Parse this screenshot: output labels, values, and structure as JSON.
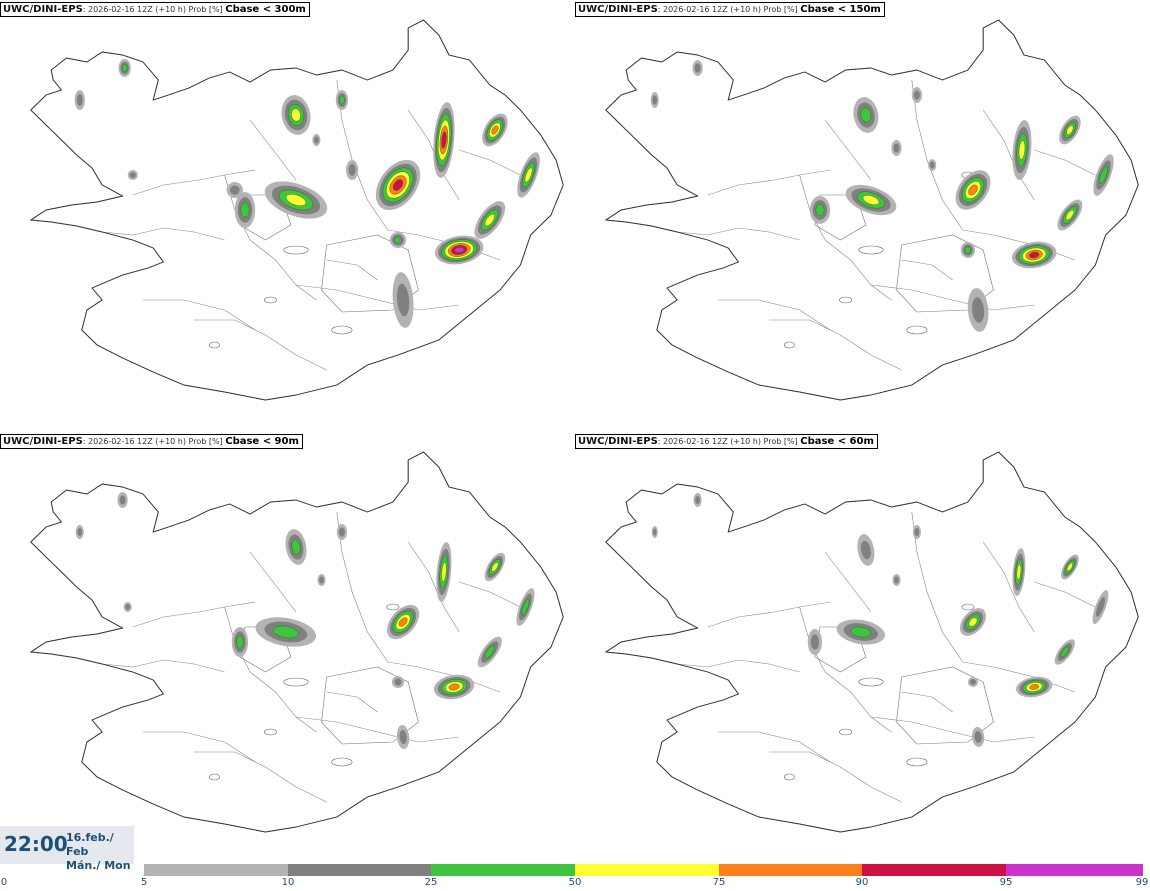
{
  "panels": [
    {
      "model": "UWC/DINI-EPS",
      "run_info": ": 2026-02-16 12Z (+10 h) Prob [%]",
      "threshold": "Cbase < 300m"
    },
    {
      "model": "UWC/DINI-EPS",
      "run_info": ": 2026-02-16 12Z (+10 h) Prob [%]",
      "threshold": "Cbase < 150m"
    },
    {
      "model": "UWC/DINI-EPS",
      "run_info": ": 2026-02-16 12Z (+10 h) Prob [%]",
      "threshold": "Cbase < 90m"
    },
    {
      "model": "UWC/DINI-EPS",
      "run_info": ": 2026-02-16 12Z (+10 h) Prob [%]",
      "threshold": "Cbase < 60m"
    }
  ],
  "valid_time": {
    "time": "22:00",
    "date_line1": "16.feb./ Feb",
    "date_line2": "Mán./ Mon"
  },
  "legend": {
    "ticks": [
      "0",
      "5",
      "10",
      "25",
      "50",
      "75",
      "90",
      "95",
      "99"
    ],
    "colors": [
      "#b3b3b3",
      "#808080",
      "#3ec43e",
      "#ffff33",
      "#ff7f1a",
      "#cc1144",
      "#cc33cc",
      "#f2b3f2"
    ]
  }
}
